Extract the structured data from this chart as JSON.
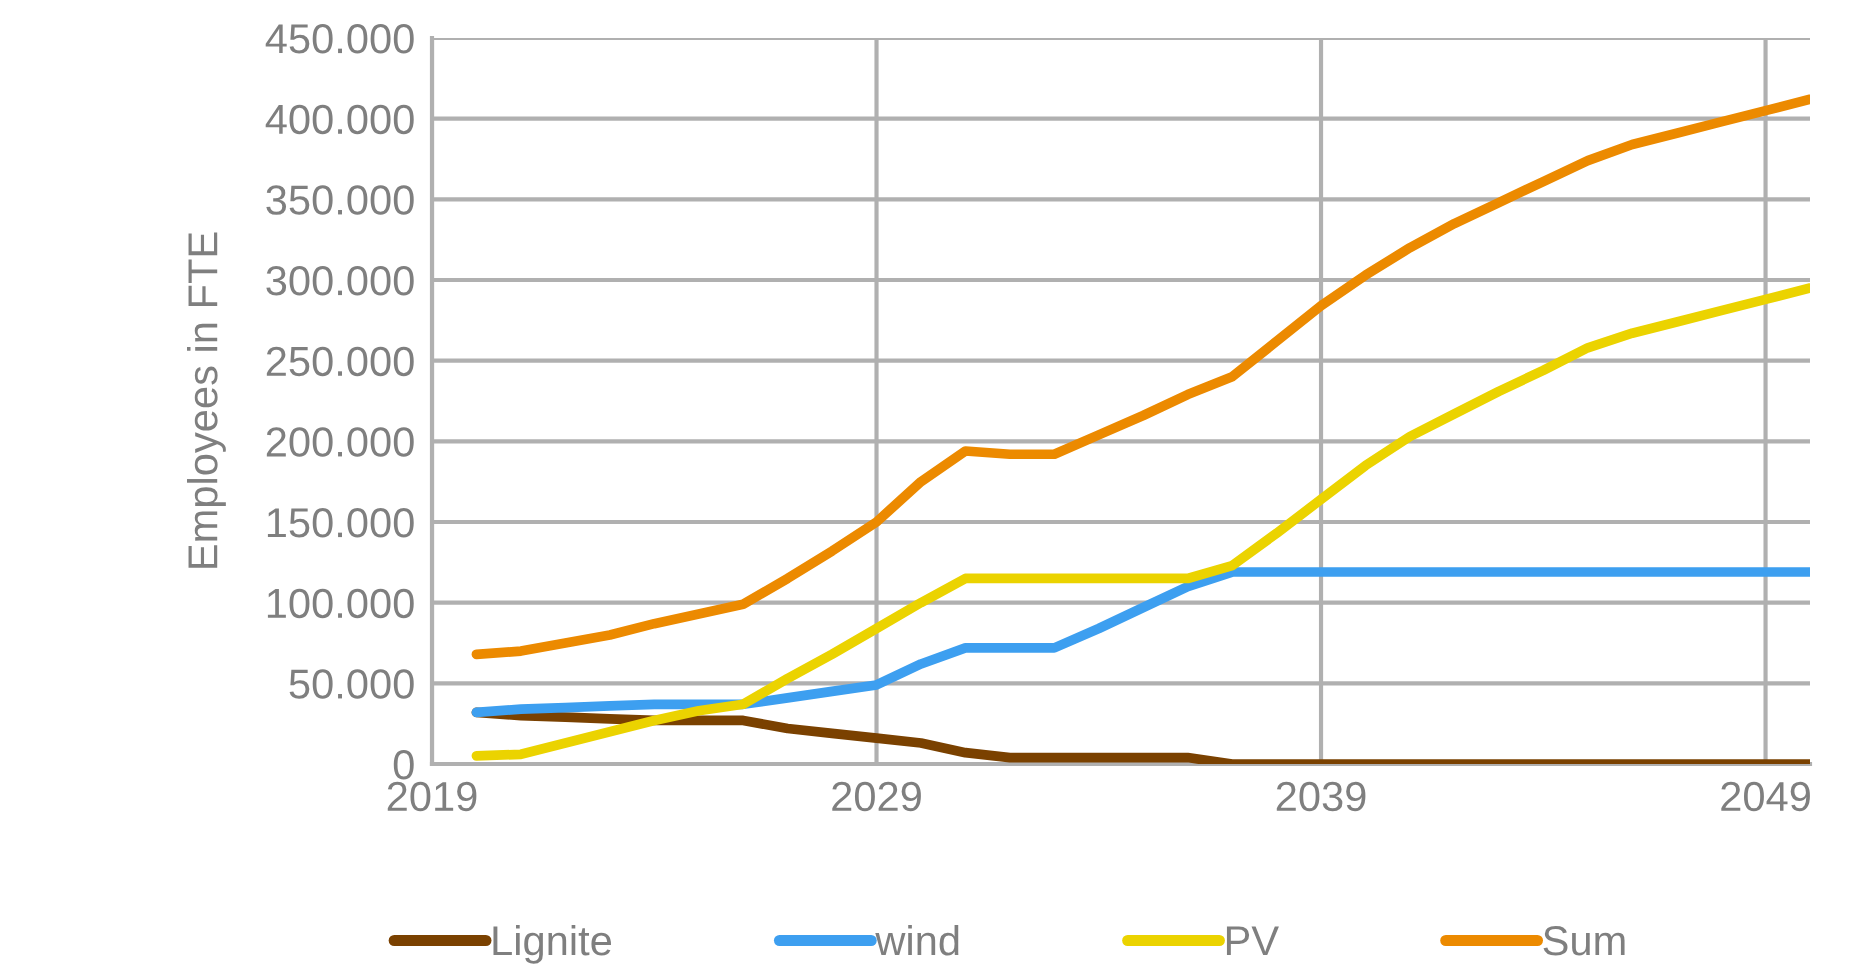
{
  "chart_data": {
    "type": "line",
    "ylabel": "Employees in FTE",
    "x": [
      2020,
      2021,
      2022,
      2023,
      2024,
      2025,
      2026,
      2027,
      2028,
      2029,
      2030,
      2031,
      2032,
      2033,
      2034,
      2035,
      2036,
      2037,
      2038,
      2039,
      2040,
      2041,
      2042,
      2043,
      2044,
      2045,
      2046,
      2047,
      2048,
      2049,
      2050
    ],
    "series": [
      {
        "name": "Lignite",
        "color": "#7a4100",
        "values": [
          32000,
          30000,
          29000,
          28000,
          27000,
          27000,
          27000,
          22000,
          19000,
          16000,
          13000,
          7000,
          4000,
          4000,
          4000,
          4000,
          4000,
          0,
          0,
          0,
          0,
          0,
          0,
          0,
          0,
          0,
          0,
          0,
          0,
          0,
          0
        ]
      },
      {
        "name": "wind",
        "color": "#3d9ff0",
        "values": [
          32000,
          34000,
          35000,
          36000,
          37000,
          37000,
          37000,
          41000,
          45000,
          49000,
          62000,
          72000,
          72000,
          72000,
          84000,
          97000,
          110000,
          119000,
          119000,
          119000,
          119000,
          119000,
          119000,
          119000,
          119000,
          119000,
          119000,
          119000,
          119000,
          119000,
          119000
        ]
      },
      {
        "name": "PV",
        "color": "#ebd300",
        "values": [
          5000,
          6000,
          13000,
          20000,
          27000,
          33000,
          37000,
          53000,
          68000,
          84000,
          100000,
          115000,
          115000,
          115000,
          115000,
          115000,
          115000,
          123000,
          143000,
          164000,
          185000,
          203000,
          217000,
          231000,
          244000,
          258000,
          267000,
          274000,
          281000,
          288000,
          295000
        ]
      },
      {
        "name": "Sum",
        "color": "#ec8a00",
        "values": [
          68000,
          70000,
          75000,
          80000,
          87000,
          93000,
          99000,
          115000,
          132000,
          150000,
          175000,
          194000,
          192000,
          192000,
          204000,
          216000,
          229000,
          240000,
          262000,
          284000,
          303000,
          320000,
          335000,
          348000,
          361000,
          374000,
          384000,
          391000,
          398000,
          405000,
          412000
        ]
      }
    ],
    "xlim": [
      2019,
      2050
    ],
    "xticks": [
      2019,
      2029,
      2039,
      2049
    ],
    "ylim": [
      0,
      450000
    ],
    "yticks": [
      {
        "value": 0,
        "label": "0"
      },
      {
        "value": 50000,
        "label": "50.000"
      },
      {
        "value": 100000,
        "label": "100.000"
      },
      {
        "value": 150000,
        "label": "150.000"
      },
      {
        "value": 200000,
        "label": "200.000"
      },
      {
        "value": 250000,
        "label": "250.000"
      },
      {
        "value": 300000,
        "label": "300.000"
      },
      {
        "value": 350000,
        "label": "350.000"
      },
      {
        "value": 400000,
        "label": "400.000"
      },
      {
        "value": 450000,
        "label": "450.000"
      }
    ],
    "grid": true,
    "legend": "bottom",
    "marker": "none",
    "line_style": "solid"
  }
}
